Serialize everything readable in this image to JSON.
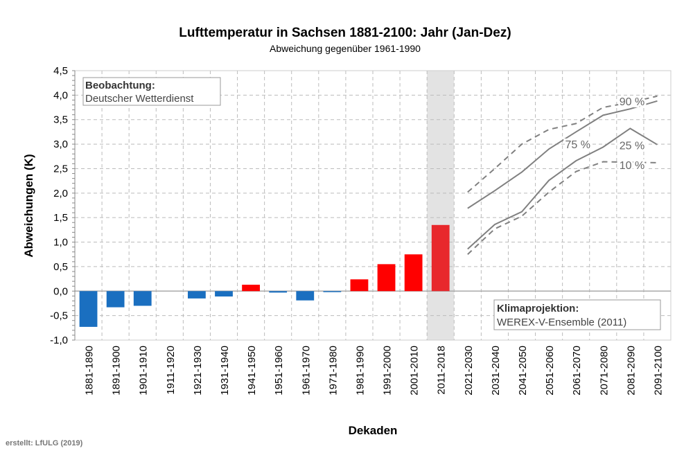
{
  "chart_data": {
    "type": "bar",
    "title": "Lufttemperatur in Sachsen 1881-2100:  Jahr (Jan-Dez)",
    "subtitle": "Abweichung gegenüber 1961-1990",
    "xlabel": "Dekaden",
    "ylabel": "Abweichungen (K)",
    "ylim": [
      -1.0,
      4.5
    ],
    "yticks": [
      "-1,0",
      "-0,5",
      "0,0",
      "0,5",
      "1,0",
      "1,5",
      "2,0",
      "2,5",
      "3,0",
      "3,5",
      "4,0",
      "4,5"
    ],
    "yticks_values": [
      -1.0,
      -0.5,
      0,
      0.5,
      1.0,
      1.5,
      2.0,
      2.5,
      3.0,
      3.5,
      4.0,
      4.5
    ],
    "grid": true,
    "categories": [
      "1881-1890",
      "1891-1900",
      "1901-1910",
      "1911-1920",
      "1921-1930",
      "1931-1940",
      "1941-1950",
      "1951-1960",
      "1961-1970",
      "1971-1980",
      "1981-1990",
      "1991-2000",
      "2001-2010",
      "2011-2018",
      "2021-2030",
      "2031-2040",
      "2041-2050",
      "2051-2060",
      "2061-2070",
      "2071-2080",
      "2081-2090",
      "2091-2100"
    ],
    "observed": {
      "name": "Beobachtung",
      "values": [
        -0.73,
        -0.33,
        -0.3,
        0,
        -0.15,
        -0.11,
        0.13,
        -0.03,
        -0.19,
        -0.01,
        0.24,
        0.55,
        0.75,
        1.35
      ],
      "colors": {
        "negative": "#1a6fc0",
        "positive": "#ff0000",
        "current": "#e8282c"
      },
      "highlight_category": "2011-2018",
      "highlight_color": "#e3e3e3"
    },
    "projection_series": [
      {
        "name": "90 %",
        "style": "dashed",
        "values": [
          2.02,
          2.5,
          3.0,
          3.3,
          3.42,
          3.75,
          3.85,
          3.98
        ]
      },
      {
        "name": "75 %",
        "style": "solid",
        "values": [
          1.69,
          2.05,
          2.43,
          2.9,
          3.25,
          3.59,
          3.72,
          3.88
        ]
      },
      {
        "name": "25 %",
        "style": "solid",
        "values": [
          0.86,
          1.36,
          1.62,
          2.26,
          2.66,
          2.94,
          3.32,
          2.99
        ]
      },
      {
        "name": "10 %",
        "style": "dashed",
        "values": [
          0.75,
          1.27,
          1.53,
          2.02,
          2.44,
          2.64,
          2.63,
          2.62
        ]
      }
    ],
    "projection_start_category": "2021-2030",
    "line_color": "#808080",
    "annotations": {
      "obs_title": "Beobachtung:",
      "obs_source": "Deutscher Wetterdienst",
      "proj_title": "Klimaprojektion:",
      "proj_source": "WEREX-V-Ensemble (2011)"
    }
  },
  "footer": "erstellt: LfULG (2019)"
}
